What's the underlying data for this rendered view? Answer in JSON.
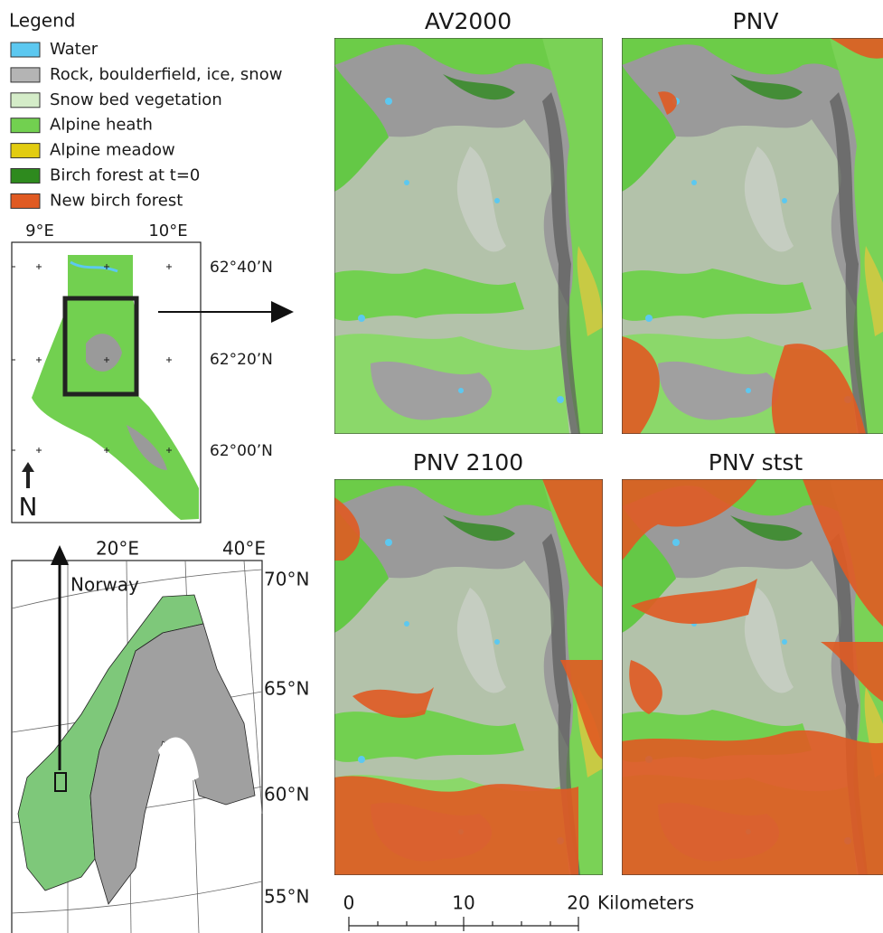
{
  "legend": {
    "title": "Legend",
    "items": [
      {
        "label": "Water",
        "color": "#5cc8f0"
      },
      {
        "label": "Rock, boulderfield, ice, snow",
        "color": "#b4b4b4"
      },
      {
        "label": "Snow bed vegetation",
        "color": "#d4ecc8"
      },
      {
        "label": "Alpine heath",
        "color": "#72d050"
      },
      {
        "label": "Alpine meadow",
        "color": "#e2cc10"
      },
      {
        "label": "Birch forest at t=0",
        "color": "#2e8a1e"
      },
      {
        "label": "New birch forest",
        "color": "#e05a22"
      }
    ]
  },
  "inset_map": {
    "lon_labels": [
      "9°E",
      "10°E"
    ],
    "lat_labels": [
      "62°40’N",
      "62°20’N",
      "62°00’N"
    ],
    "north": "N"
  },
  "overview_map": {
    "lon_labels": [
      "20°E",
      "40°E"
    ],
    "lat_labels": [
      "70°N",
      "65°N",
      "60°N",
      "55°N"
    ],
    "country": "Norway"
  },
  "panels": [
    {
      "title": "AV2000"
    },
    {
      "title": "PNV"
    },
    {
      "title": "PNV 2100"
    },
    {
      "title": "PNV stst"
    }
  ],
  "scale_bar": {
    "labels": [
      "0",
      "10",
      "20"
    ],
    "unit": "Kilometers"
  }
}
